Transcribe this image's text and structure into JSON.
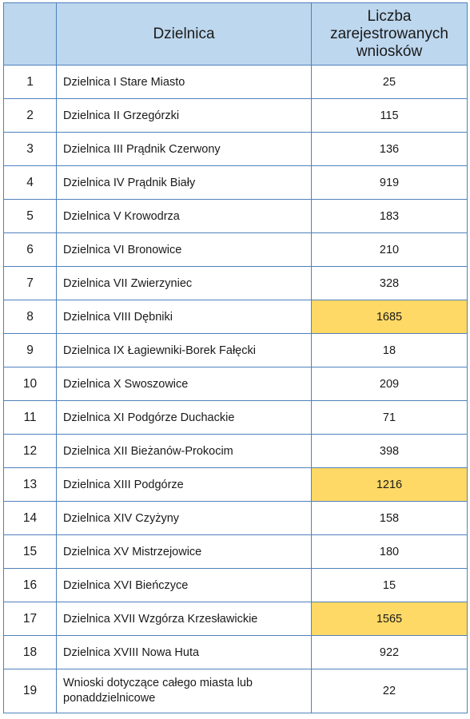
{
  "table": {
    "headers": {
      "num": "",
      "district": "Dzielnica",
      "count_lines": [
        "Liczba",
        "zarejestrowanych",
        "wniosków"
      ]
    },
    "rows": [
      {
        "no": "1",
        "district": "Dzielnica I Stare Miasto",
        "count": "25",
        "highlight": false
      },
      {
        "no": "2",
        "district": "Dzielnica II Grzegórzki",
        "count": "115",
        "highlight": false
      },
      {
        "no": "3",
        "district": "Dzielnica III Prądnik Czerwony",
        "count": "136",
        "highlight": false
      },
      {
        "no": "4",
        "district": "Dzielnica IV Prądnik Biały",
        "count": "919",
        "highlight": false
      },
      {
        "no": "5",
        "district": "Dzielnica V Krowodrza",
        "count": "183",
        "highlight": false
      },
      {
        "no": "6",
        "district": "Dzielnica VI Bronowice",
        "count": "210",
        "highlight": false
      },
      {
        "no": "7",
        "district": "Dzielnica VII Zwierzyniec",
        "count": "328",
        "highlight": false
      },
      {
        "no": "8",
        "district": "Dzielnica VIII Dębniki",
        "count": "1685",
        "highlight": true
      },
      {
        "no": "9",
        "district": "Dzielnica IX Łagiewniki-Borek Fałęcki",
        "count": "18",
        "highlight": false
      },
      {
        "no": "10",
        "district": "Dzielnica X Swoszowice",
        "count": "209",
        "highlight": false
      },
      {
        "no": "11",
        "district": "Dzielnica XI Podgórze Duchackie",
        "count": "71",
        "highlight": false
      },
      {
        "no": "12",
        "district": "Dzielnica XII Bieżanów-Prokocim",
        "count": "398",
        "highlight": false
      },
      {
        "no": "13",
        "district": "Dzielnica XIII Podgórze",
        "count": "1216",
        "highlight": true
      },
      {
        "no": "14",
        "district": "Dzielnica XIV Czyżyny",
        "count": "158",
        "highlight": false
      },
      {
        "no": "15",
        "district": "Dzielnica XV Mistrzejowice",
        "count": "180",
        "highlight": false
      },
      {
        "no": "16",
        "district": "Dzielnica XVI Bieńczyce",
        "count": "15",
        "highlight": false
      },
      {
        "no": "17",
        "district": "Dzielnica XVII Wzgórza Krzesławickie",
        "count": "1565",
        "highlight": true
      },
      {
        "no": "18",
        "district": "Dzielnica XVIII Nowa Huta",
        "count": "922",
        "highlight": false
      },
      {
        "no": "19",
        "district_lines": [
          "Wnioski dotyczące całego miasta lub",
          "ponaddzielnicowe"
        ],
        "count": "22",
        "highlight": false
      }
    ]
  },
  "colors": {
    "header_bg": "#bdd7ee",
    "border": "#4f81bd",
    "highlight": "#ffd966"
  }
}
